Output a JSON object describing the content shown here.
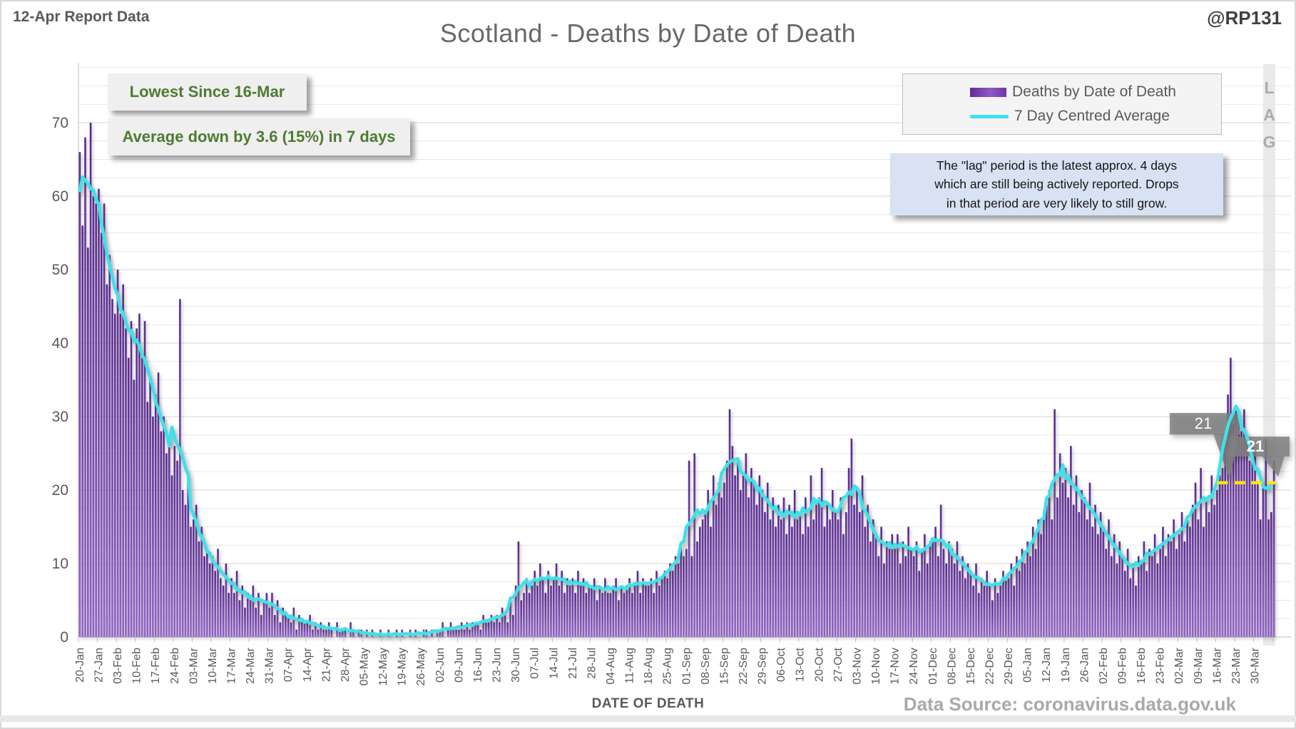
{
  "header": {
    "report_label": "12-Apr Report Data",
    "watermark": "@RP131",
    "title": "Scotland - Deaths by Date of Death"
  },
  "annotations": {
    "line1": "Lowest Since 16-Mar",
    "line2": "Average down by 3.6 (15%) in 7 days"
  },
  "legend": {
    "series1": "Deaths by Date of Death",
    "series2": "7 Day Centred Average"
  },
  "lag": {
    "letters": [
      "L",
      "A",
      "G"
    ],
    "note_line1": "The \"lag\" period is the latest approx. 4 days",
    "note_line2": "which are still being actively reported.  Drops",
    "note_line3": "in that period are very likely to still grow."
  },
  "callouts": {
    "value1": "21",
    "value2": "21"
  },
  "footer": {
    "x_axis_title": "DATE OF DEATH",
    "source": "Data Source: coronavirus.data.gov.uk"
  },
  "colors": {
    "bar_top": "#5a2a90",
    "bar_bottom": "#9263c9",
    "avg_line": "#3ee1ec",
    "guide_line": "#ffe500",
    "annotation_green": "#4e7b31",
    "callout_gray": "#808080",
    "lag_band": "#e9e9e9",
    "note_blue": "#d9e2f2"
  },
  "chart_data": {
    "type": "bar",
    "title": "Scotland - Deaths by Date of Death",
    "xlabel": "DATE OF DEATH",
    "ylabel": "",
    "x_start_label": "20-Jan",
    "x_interval": "daily",
    "ylim": [
      0,
      78
    ],
    "y_ticks": [
      0,
      10,
      20,
      30,
      40,
      50,
      60,
      70
    ],
    "grid": "horizontal, minor every 2.5, major every 10",
    "legend_position": "top-right",
    "x_tick_labels": [
      "20-Jan",
      "27-Jan",
      "03-Feb",
      "10-Feb",
      "17-Feb",
      "24-Feb",
      "03-Mar",
      "10-Mar",
      "17-Mar",
      "24-Mar",
      "31-Mar",
      "07-Apr",
      "14-Apr",
      "21-Apr",
      "28-Apr",
      "05-May",
      "12-May",
      "19-May",
      "26-May",
      "02-Jun",
      "09-Jun",
      "16-Jun",
      "23-Jun",
      "30-Jun",
      "07-Jul",
      "14-Jul",
      "21-Jul",
      "28-Jul",
      "04-Aug",
      "11-Aug",
      "18-Aug",
      "25-Aug",
      "01-Sep",
      "08-Sep",
      "15-Sep",
      "22-Sep",
      "29-Sep",
      "06-Oct",
      "13-Oct",
      "20-Oct",
      "27-Oct",
      "03-Nov",
      "10-Nov",
      "17-Nov",
      "24-Nov",
      "01-Dec",
      "08-Dec",
      "15-Dec",
      "22-Dec",
      "29-Dec",
      "05-Jan",
      "12-Jan",
      "19-Jan",
      "26-Jan",
      "02-Feb",
      "09-Feb",
      "16-Feb",
      "23-Feb",
      "02-Mar",
      "09-Mar",
      "16-Mar",
      "23-Mar",
      "30-Mar"
    ],
    "x_tick_every_n_days": 7,
    "series": [
      {
        "name": "Deaths by Date of Death",
        "type": "bar",
        "values": [
          66,
          56,
          68,
          53,
          70,
          60,
          59,
          61,
          55,
          59,
          48,
          52,
          46,
          44,
          50,
          44,
          48,
          42,
          38,
          43,
          35,
          42,
          44,
          38,
          43,
          32,
          35,
          30,
          33,
          36,
          28,
          30,
          25,
          27,
          22,
          26,
          24,
          46,
          20,
          18,
          22,
          15,
          16,
          18,
          13,
          15,
          11,
          12,
          10,
          11,
          9,
          12,
          8,
          7,
          10,
          6,
          8,
          6,
          9,
          5,
          7,
          4,
          6,
          5,
          7,
          4,
          6,
          3,
          5,
          6,
          4,
          6,
          3,
          5,
          2,
          4,
          3,
          3,
          2,
          4,
          1,
          3,
          2,
          2,
          2,
          3,
          1,
          2,
          1,
          2,
          1,
          1,
          2,
          1,
          0,
          2,
          1,
          1,
          1,
          0,
          2,
          1,
          0,
          1,
          1,
          0,
          1,
          0,
          1,
          0,
          0,
          1,
          0,
          0,
          1,
          0,
          0,
          1,
          0,
          1,
          0,
          0,
          1,
          0,
          1,
          0,
          0,
          1,
          1,
          0,
          1,
          0,
          1,
          1,
          2,
          0,
          1,
          2,
          1,
          1,
          1,
          2,
          1,
          2,
          1,
          2,
          2,
          2,
          1,
          3,
          2,
          2,
          3,
          2,
          3,
          2,
          4,
          3,
          2,
          5,
          3,
          7,
          13,
          5,
          6,
          8,
          6,
          7,
          9,
          7,
          10,
          8,
          6,
          9,
          7,
          8,
          10,
          7,
          9,
          6,
          8,
          7,
          8,
          6,
          9,
          7,
          8,
          6,
          7,
          7,
          8,
          5,
          7,
          6,
          8,
          6,
          6,
          7,
          8,
          5,
          7,
          6,
          7,
          8,
          6,
          7,
          9,
          6,
          8,
          7,
          7,
          8,
          6,
          9,
          7,
          8,
          9,
          8,
          10,
          9,
          11,
          10,
          12,
          11,
          12,
          24,
          11,
          25,
          13,
          15,
          16,
          17,
          20,
          15,
          22,
          18,
          21,
          19,
          21,
          24,
          31,
          26,
          22,
          24,
          20,
          22,
          25,
          19,
          23,
          21,
          18,
          22,
          20,
          17,
          21,
          16,
          19,
          15,
          18,
          16,
          19,
          14,
          18,
          15,
          20,
          16,
          17,
          14,
          19,
          15,
          22,
          16,
          18,
          19,
          23,
          15,
          18,
          16,
          20,
          17,
          16,
          19,
          14,
          17,
          23,
          27,
          18,
          20,
          17,
          22,
          15,
          18,
          13,
          16,
          14,
          11,
          15,
          10,
          13,
          12,
          14,
          12,
          14,
          10,
          13,
          11,
          15,
          12,
          11,
          13,
          9,
          12,
          14,
          10,
          13,
          13,
          15,
          11,
          18,
          12,
          10,
          13,
          12,
          10,
          13,
          9,
          11,
          8,
          10,
          9,
          7,
          10,
          6,
          8,
          7,
          9,
          7,
          5,
          8,
          6,
          7,
          9,
          8,
          8,
          10,
          7,
          11,
          9,
          12,
          10,
          13,
          11,
          15,
          12,
          16,
          14,
          17,
          18,
          20,
          16,
          31,
          19,
          25,
          21,
          23,
          19,
          26,
          18,
          22,
          17,
          20,
          19,
          16,
          21,
          15,
          18,
          14,
          17,
          15,
          12,
          16,
          11,
          14,
          10,
          13,
          11,
          9,
          12,
          8,
          10,
          7,
          11,
          10,
          13,
          9,
          12,
          11,
          14,
          10,
          12,
          15,
          11,
          14,
          13,
          16,
          12,
          14,
          17,
          13,
          16,
          15,
          18,
          21,
          16,
          23,
          15,
          19,
          17,
          22,
          18,
          20,
          22,
          23,
          25,
          33,
          38,
          29,
          31,
          30,
          28,
          31,
          27,
          24,
          26,
          25,
          21,
          16,
          21,
          27,
          16,
          17,
          24
        ]
      },
      {
        "name": "7 Day Centred Average",
        "type": "line",
        "derivation": "7-day centred moving average of the daily bar values (window truncated at series ends)"
      }
    ],
    "guide_line": {
      "value": 21,
      "style": "yellow dashed",
      "from_label": "16-Mar",
      "to": "series end"
    },
    "data_callouts": [
      {
        "label": "21",
        "anchor_label": "16-Mar",
        "series": "7 Day Centred Average"
      },
      {
        "label": "21",
        "anchor_label": "series end (lag period)",
        "series": "7 Day Centred Average"
      }
    ],
    "lag_band": {
      "covers": "last 4 days",
      "label": "LAG"
    }
  }
}
